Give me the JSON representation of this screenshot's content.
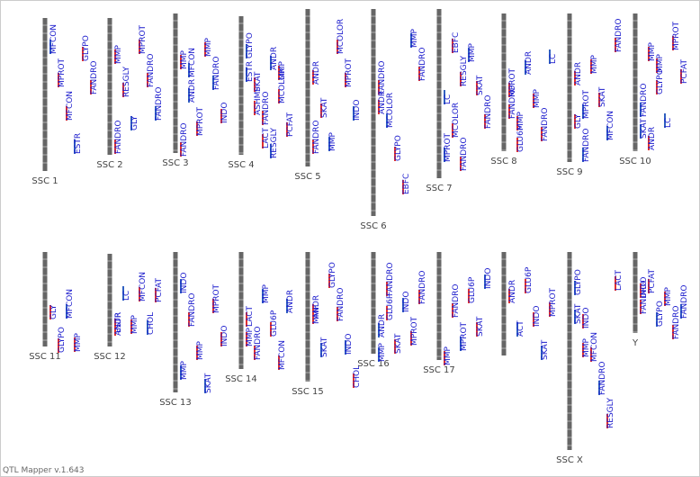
{
  "chromosomes": [
    {
      "name": "SSC 1",
      "qtls": [
        "MFCON",
        "MPROT",
        "MFCON",
        "ESTR",
        "GLYPO",
        "FANDRO"
      ]
    },
    {
      "name": "SSC 2",
      "qtls": [
        "MMP",
        "RESGLY",
        "GLY",
        "MPROT",
        "FANDRO",
        "FANDRO",
        "FANDRO"
      ]
    },
    {
      "name": "SSC 3",
      "qtls": [
        "MMP",
        "ANDR",
        "MPROT",
        "MMP",
        "FANDRO",
        "INDO",
        "FANDRO",
        "MFCON"
      ]
    },
    {
      "name": "SSC 4",
      "qtls": [
        "ESTR",
        "ASHMP",
        "LACT",
        "ANDR",
        "MCOLOR",
        "PCFAT",
        "GLYPO",
        "SKAT",
        "FANDRO",
        "RESGLY",
        "MMP"
      ]
    },
    {
      "name": "SSC 5",
      "qtls": [
        "ANDR",
        "SKAT",
        "MMP",
        "MCOLOR",
        "MPROT",
        "INDO",
        "FANDRO"
      ]
    },
    {
      "name": "SSC 6",
      "qtls": [
        "FANDRO",
        "MCOLOR",
        "GLYPO",
        "EBFC",
        "MMP",
        "FANDRO",
        "ANDR"
      ]
    },
    {
      "name": "SSC 7",
      "qtls": [
        "LC",
        "MCOLOR",
        "FANDRO",
        "MMP",
        "SKAT",
        "FANDRO",
        "MPROT",
        "EBFC",
        "RESGLY"
      ]
    },
    {
      "name": "SSC 8",
      "qtls": [
        "FANDRO",
        "GLU6P",
        "ANDR",
        "MMP",
        "FANDRO",
        "LC",
        "MPROT",
        "MMP"
      ]
    },
    {
      "name": "SSC 9",
      "qtls": [
        "GLY",
        "FANDRO",
        "MMP",
        "SKAT",
        "MFCON",
        "FANDRO",
        "ANDR",
        "MPROT"
      ]
    },
    {
      "name": "SSC 10",
      "qtls": [
        "SKAT",
        "MMP",
        "GLYPO",
        "LC",
        "MPROT",
        "PCFAT",
        "FANDRO",
        "ANDR",
        "MMP"
      ]
    },
    {
      "name": "SSC 11",
      "qtls": [
        "GLY",
        "GLYPO",
        "MFCON",
        "MMP"
      ]
    },
    {
      "name": "SSC 12",
      "qtls": [
        "ESTR",
        "LC",
        "MMP",
        "MFCON",
        "CHOL",
        "PCFAT",
        "ANDR"
      ]
    },
    {
      "name": "SSC 13",
      "qtls": [
        "INDO",
        "FANDRO",
        "MMP",
        "SKAT",
        "MPROT",
        "INDO",
        "MMP"
      ]
    },
    {
      "name": "SSC 14",
      "qtls": [
        "LACT",
        "FANDRO",
        "MMP",
        "GLU6P",
        "MFCON",
        "ANDR",
        "MMP"
      ]
    },
    {
      "name": "SSC 15",
      "qtls": [
        "MMP",
        "SKAT",
        "GLYPO",
        "FANDRO",
        "INDO",
        "CHOL",
        "ANDR"
      ]
    },
    {
      "name": "SSC 16",
      "qtls": [
        "MMP",
        "GLU6P",
        "SKAT",
        "INDO",
        "MPROT",
        "FANDRO",
        "ANDR",
        "FANDRO"
      ]
    },
    {
      "name": "SSC 17",
      "qtls": [
        "MMP",
        "FANDRO",
        "MPROT",
        "GLU6P",
        "SKAT",
        "INDO"
      ]
    },
    {
      "name": null,
      "qtls": [
        "ANDR",
        "ACT",
        "GLU6P",
        "INDO",
        "SKAT",
        "MPROT"
      ]
    },
    {
      "name": "SSC X",
      "qtls": [
        "GLYPO",
        "INDO",
        "MFCON",
        "FANDRO",
        "RESGLY",
        "LACT",
        "SKAT",
        "MMP"
      ]
    },
    {
      "name": "Y",
      "qtls": [
        "FANDRO",
        "PCFAT",
        "GLYPO",
        "MMP",
        "FANDRO",
        "FANDRO",
        "INDO"
      ]
    }
  ],
  "footer": "QTL Mapper v.1.643"
}
